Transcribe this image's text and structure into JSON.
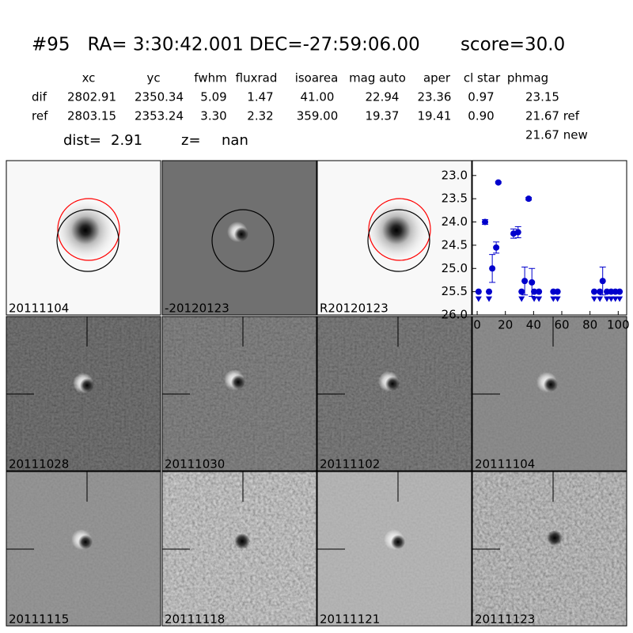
{
  "header": {
    "title": "#95   RA= 3:30:42.001 DEC=-27:59:06.00       score=30.0"
  },
  "table": {
    "columns": [
      "xc",
      "yc",
      "fwhm",
      "fluxrad",
      "isoarea",
      "mag auto",
      "aper",
      "cl star",
      "phmag"
    ],
    "rows": [
      [
        "dif",
        "2802.91",
        "2350.34",
        "5.09",
        "1.47",
        "41.00",
        "22.94",
        "23.36",
        "0.97",
        "23.15"
      ],
      [
        "ref",
        "2803.15",
        "2353.24",
        "3.30",
        "2.32",
        "359.00",
        "19.37",
        "19.41",
        "0.90",
        "21.67 ref"
      ]
    ],
    "extra": "21.67 new"
  },
  "distance": {
    "dist_label": "dist=",
    "dist": "2.91",
    "z_label": "z=",
    "z": "nan"
  },
  "panels": [
    {
      "label": "20111104"
    },
    {
      "label": "-20120123"
    },
    {
      "label": "R20120123"
    },
    {
      "label": "20111028"
    },
    {
      "label": "20111030"
    },
    {
      "label": "20111102"
    },
    {
      "label": "20111104",
      "color": "#dd0000"
    },
    {
      "label": "20111115"
    },
    {
      "label": "20111118"
    },
    {
      "label": "20111121"
    },
    {
      "label": "20111123"
    }
  ],
  "chart_data": {
    "type": "scatter",
    "color": "#0000cc",
    "inverted_y": true,
    "xlim": [
      -3.4,
      106
    ],
    "ylim": [
      26.0,
      22.68
    ],
    "xticks": [
      0,
      20,
      40,
      60,
      80,
      100
    ],
    "yticks": [
      {
        "value": 23.0,
        "label": "23.0"
      },
      {
        "value": 23.5,
        "label": "23.5"
      },
      {
        "value": 24.0,
        "label": "24.0"
      },
      {
        "value": 24.5,
        "label": "24.5"
      },
      {
        "value": 25.0,
        "label": "25.0"
      },
      {
        "value": 25.5,
        "label": "25.5"
      },
      {
        "value": 26.0,
        "label": "26.0"
      }
    ],
    "detections": {
      "x": [
        5.6,
        10.7,
        13.5,
        15,
        25.8,
        29,
        33.7,
        36.5,
        38.8,
        89
      ],
      "values": [
        24.0,
        25.0,
        24.55,
        23.15,
        24.25,
        24.22,
        25.27,
        23.5,
        25.3,
        25.27
      ],
      "errors": [
        0.05,
        0.3,
        0.12,
        0.02,
        0.1,
        0.12,
        0.3,
        0.03,
        0.3,
        0.3
      ]
    },
    "upper_limits": {
      "x": [
        1,
        8.4,
        31.5,
        40.4,
        43.8,
        54,
        57,
        83,
        87,
        92,
        95,
        98,
        101
      ],
      "values": [
        25.5,
        25.5,
        25.5,
        25.5,
        25.5,
        25.5,
        25.5,
        25.5,
        25.5,
        25.5,
        25.5,
        25.5,
        25.5
      ]
    }
  }
}
